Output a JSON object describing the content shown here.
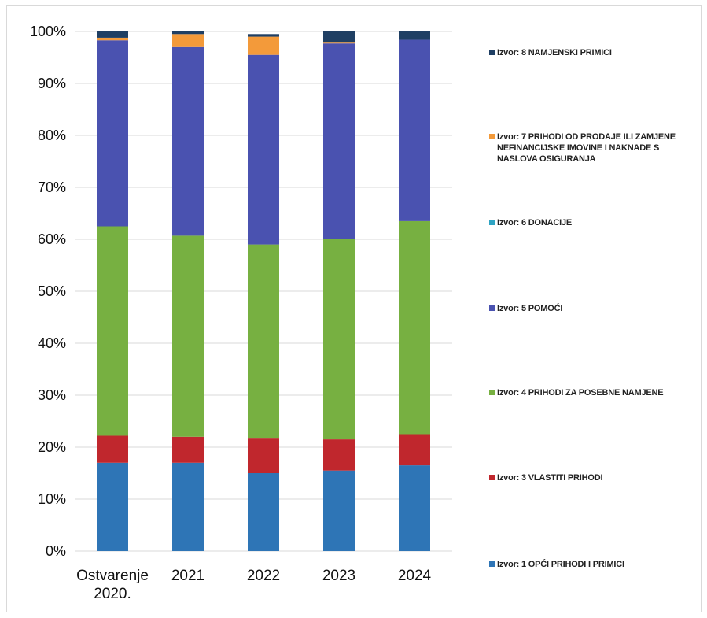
{
  "chart_data": {
    "type": "bar",
    "stacked": true,
    "categories": [
      "Ostvarenje\n2020.",
      "2021",
      "2022",
      "2023",
      "2024"
    ],
    "y_tick_labels": [
      "0%",
      "10%",
      "20%",
      "30%",
      "40%",
      "50%",
      "60%",
      "70%",
      "80%",
      "90%",
      "100%"
    ],
    "ylim": [
      0,
      100
    ],
    "grid": true,
    "legend_position": "right",
    "series": [
      {
        "name": "Izvor: 1 OPĆI PRIHODI I PRIMICI",
        "color": "#2e75b6",
        "values": [
          17.0,
          17.0,
          15.0,
          15.5,
          16.5
        ]
      },
      {
        "name": "Izvor: 3 VLASTITI PRIHODI",
        "color": "#c0272d",
        "values": [
          5.2,
          5.0,
          6.8,
          6.0,
          6.0
        ]
      },
      {
        "name": "Izvor: 4 PRIHODI ZA POSEBNE NAMJENE",
        "color": "#77b041",
        "values": [
          40.3,
          38.7,
          37.2,
          38.5,
          41.0
        ]
      },
      {
        "name": "Izvor: 5 POMOĆI",
        "color": "#4a52b0",
        "values": [
          35.8,
          36.3,
          36.5,
          37.7,
          34.9
        ]
      },
      {
        "name": "Izvor: 6 DONACIJE",
        "color": "#2fa4c3",
        "values": [
          0.0,
          0.0,
          0.0,
          0.0,
          0.0
        ]
      },
      {
        "name": "Izvor: 7 PRIHODI OD PRODAJE ILI ZAMJENE NEFINANCIJSKE IMOVINE I NAKNADE S NASLOVA OSIGURANJA",
        "color": "#f39a3a",
        "values": [
          0.5,
          2.5,
          3.5,
          0.3,
          0.0
        ]
      },
      {
        "name": "Izvor: 8 NAMJENSKI PRIMICI",
        "color": "#1f3f63",
        "values": [
          1.2,
          0.5,
          0.5,
          2.0,
          1.6
        ]
      }
    ]
  },
  "legend": {
    "items": [
      {
        "label": "Izvor: 8 NAMJENSKI PRIMICI",
        "color": "#1f3f63"
      },
      {
        "label": "Izvor: 7 PRIHODI OD PRODAJE ILI ZAMJENE NEFINANCIJSKE IMOVINE I NAKNADE S NASLOVA OSIGURANJA",
        "color": "#f39a3a"
      },
      {
        "label": "Izvor: 6 DONACIJE",
        "color": "#2fa4c3"
      },
      {
        "label": "Izvor: 5 POMOĆI",
        "color": "#4a52b0"
      },
      {
        "label": "Izvor: 4 PRIHODI ZA POSEBNE NAMJENE",
        "color": "#77b041"
      },
      {
        "label": "Izvor: 3 VLASTITI PRIHODI",
        "color": "#c0272d"
      },
      {
        "label": "Izvor: 1 OPĆI PRIHODI I PRIMICI",
        "color": "#2e75b6"
      }
    ]
  }
}
